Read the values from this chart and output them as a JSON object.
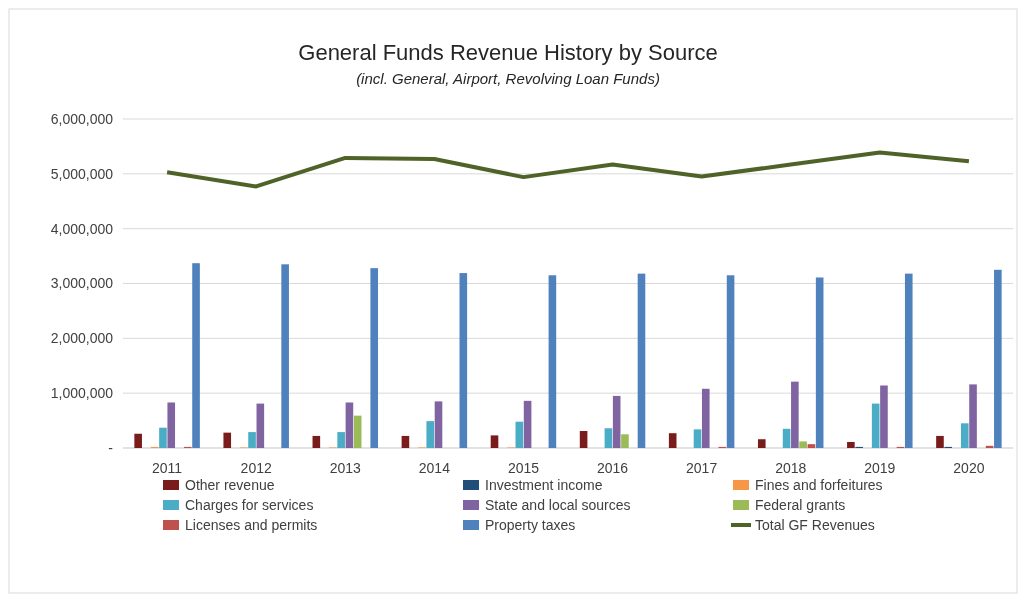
{
  "chart_data": {
    "type": "bar",
    "title": "General Funds Revenue History by Source",
    "subtitle": "(incl. General, Airport, Revolving Loan Funds)",
    "categories": [
      "2011",
      "2012",
      "2013",
      "2014",
      "2015",
      "2016",
      "2017",
      "2018",
      "2019",
      "2020"
    ],
    "series": [
      {
        "name": "Other revenue",
        "color": "#7b1c1c",
        "values": [
          260000,
          280000,
          220000,
          220000,
          230000,
          310000,
          270000,
          160000,
          110000,
          220000
        ]
      },
      {
        "name": "Investment income",
        "color": "#1f4e79",
        "values": [
          0,
          0,
          0,
          0,
          0,
          0,
          0,
          0,
          20000,
          20000
        ]
      },
      {
        "name": "Fines and forfeitures",
        "color": "#f79646",
        "values": [
          20000,
          10000,
          10000,
          10000,
          10000,
          0,
          0,
          0,
          0,
          0
        ]
      },
      {
        "name": "Charges for services",
        "color": "#4bacc6",
        "values": [
          370000,
          290000,
          290000,
          490000,
          480000,
          360000,
          340000,
          350000,
          810000,
          450000
        ]
      },
      {
        "name": "State and local sources",
        "color": "#8064a2",
        "values": [
          830000,
          810000,
          830000,
          850000,
          860000,
          950000,
          1080000,
          1210000,
          1140000,
          1160000
        ]
      },
      {
        "name": "Federal grants",
        "color": "#9bbb59",
        "values": [
          0,
          0,
          590000,
          0,
          0,
          250000,
          0,
          120000,
          0,
          0
        ]
      },
      {
        "name": "Licenses and permits",
        "color": "#c0504d",
        "values": [
          20000,
          0,
          0,
          0,
          0,
          0,
          20000,
          70000,
          20000,
          40000
        ]
      },
      {
        "name": "Property taxes",
        "color": "#4f81bd",
        "values": [
          3370000,
          3350000,
          3280000,
          3190000,
          3150000,
          3180000,
          3150000,
          3110000,
          3180000,
          3250000
        ]
      },
      {
        "name": "Total GF Revenues",
        "type": "line",
        "color": "#4f6228",
        "values": [
          5030000,
          4770000,
          5290000,
          5270000,
          4940000,
          5170000,
          4950000,
          5170000,
          5390000,
          5230000
        ]
      }
    ],
    "ylim": [
      0,
      6000000
    ],
    "yticks": [
      {
        "value": 0,
        "label": "-"
      },
      {
        "value": 1000000,
        "label": "1,000,000"
      },
      {
        "value": 2000000,
        "label": "2,000,000"
      },
      {
        "value": 3000000,
        "label": "3,000,000"
      },
      {
        "value": 4000000,
        "label": "4,000,000"
      },
      {
        "value": 5000000,
        "label": "5,000,000"
      },
      {
        "value": 6000000,
        "label": "6,000,000"
      }
    ],
    "grid": "y",
    "legend": "bottom",
    "marker": "none"
  }
}
